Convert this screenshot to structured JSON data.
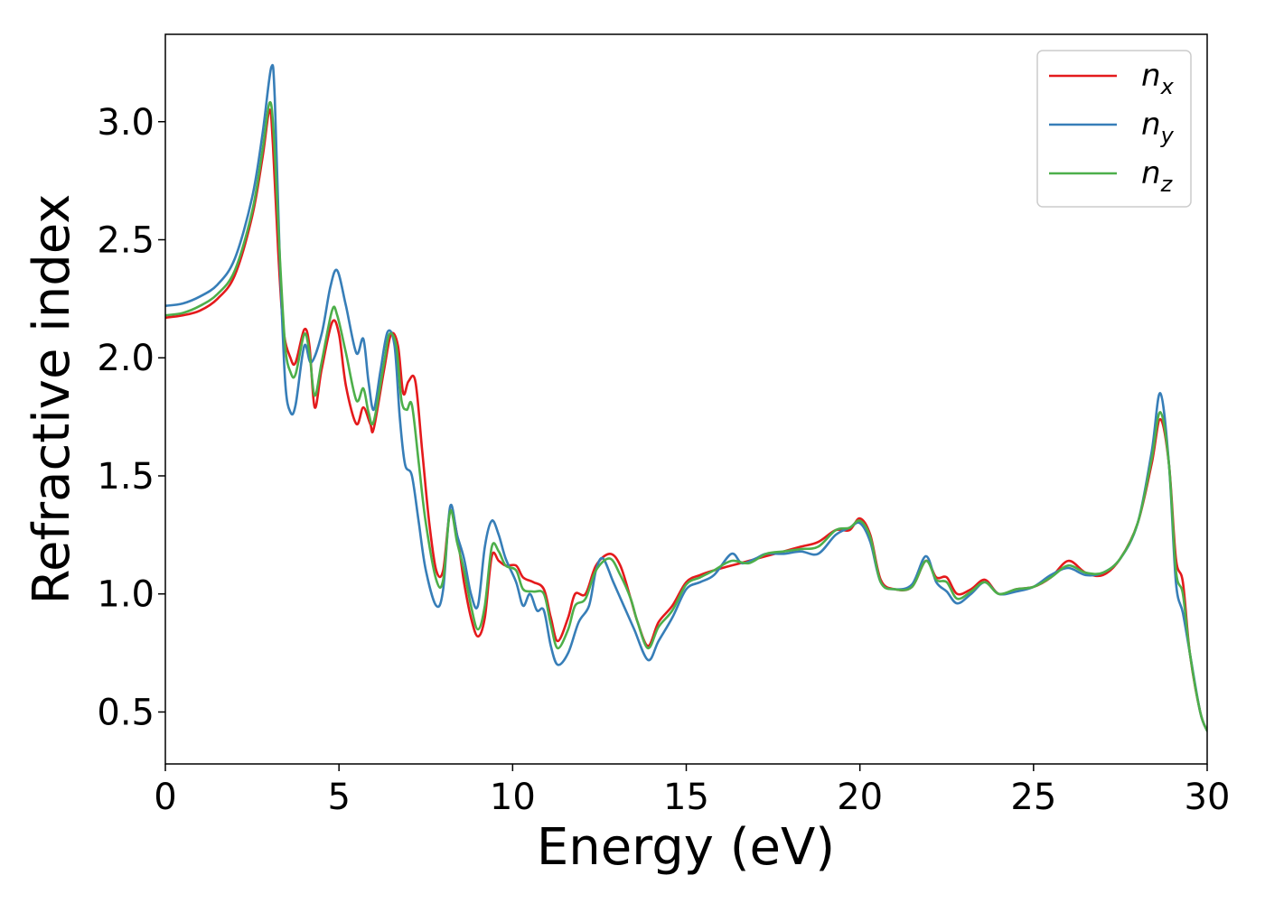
{
  "chart_data": {
    "type": "line",
    "xlabel": "Energy (eV)",
    "ylabel": "Refractive index",
    "xlim": [
      0,
      30
    ],
    "ylim": [
      0.28,
      3.37
    ],
    "xticks": [
      "0",
      "5",
      "10",
      "15",
      "20",
      "25",
      "30"
    ],
    "xtick_values": [
      0,
      5,
      10,
      15,
      20,
      25,
      30
    ],
    "yticks": [
      "0.5",
      "1.0",
      "1.5",
      "2.0",
      "2.5",
      "3.0"
    ],
    "ytick_values": [
      0.5,
      1.0,
      1.5,
      2.0,
      2.5,
      3.0
    ],
    "grid": false,
    "legend_position": "upper-right",
    "series": [
      {
        "name": "n_x",
        "label_main": "n",
        "label_sub": "x",
        "color": "#e41a1c",
        "points": [
          [
            0,
            2.17
          ],
          [
            0.5,
            2.18
          ],
          [
            1.0,
            2.2
          ],
          [
            1.5,
            2.25
          ],
          [
            2.0,
            2.35
          ],
          [
            2.5,
            2.6
          ],
          [
            2.8,
            2.85
          ],
          [
            3.0,
            3.05
          ],
          [
            3.1,
            2.9
          ],
          [
            3.25,
            2.45
          ],
          [
            3.4,
            2.12
          ],
          [
            3.6,
            2.0
          ],
          [
            3.75,
            1.98
          ],
          [
            4.0,
            2.12
          ],
          [
            4.15,
            2.05
          ],
          [
            4.3,
            1.79
          ],
          [
            4.5,
            1.95
          ],
          [
            4.8,
            2.15
          ],
          [
            5.0,
            2.1
          ],
          [
            5.2,
            1.88
          ],
          [
            5.5,
            1.72
          ],
          [
            5.7,
            1.79
          ],
          [
            5.9,
            1.72
          ],
          [
            6.0,
            1.7
          ],
          [
            6.3,
            1.95
          ],
          [
            6.5,
            2.1
          ],
          [
            6.7,
            2.05
          ],
          [
            6.85,
            1.85
          ],
          [
            7.0,
            1.9
          ],
          [
            7.2,
            1.9
          ],
          [
            7.4,
            1.6
          ],
          [
            7.6,
            1.3
          ],
          [
            7.8,
            1.1
          ],
          [
            8.0,
            1.1
          ],
          [
            8.2,
            1.35
          ],
          [
            8.4,
            1.25
          ],
          [
            8.6,
            1.05
          ],
          [
            8.8,
            0.9
          ],
          [
            9.0,
            0.82
          ],
          [
            9.2,
            0.9
          ],
          [
            9.4,
            1.16
          ],
          [
            9.6,
            1.14
          ],
          [
            9.8,
            1.12
          ],
          [
            10.1,
            1.12
          ],
          [
            10.3,
            1.07
          ],
          [
            10.6,
            1.05
          ],
          [
            10.9,
            1.02
          ],
          [
            11.1,
            0.9
          ],
          [
            11.3,
            0.8
          ],
          [
            11.6,
            0.9
          ],
          [
            11.8,
            1.0
          ],
          [
            12.1,
            1.0
          ],
          [
            12.4,
            1.12
          ],
          [
            12.8,
            1.17
          ],
          [
            13.1,
            1.12
          ],
          [
            13.4,
            0.98
          ],
          [
            13.6,
            0.88
          ],
          [
            13.9,
            0.78
          ],
          [
            14.2,
            0.88
          ],
          [
            14.6,
            0.95
          ],
          [
            15.0,
            1.05
          ],
          [
            15.4,
            1.08
          ],
          [
            15.8,
            1.1
          ],
          [
            16.3,
            1.12
          ],
          [
            16.8,
            1.14
          ],
          [
            17.3,
            1.16
          ],
          [
            17.8,
            1.18
          ],
          [
            18.3,
            1.2
          ],
          [
            18.8,
            1.22
          ],
          [
            19.3,
            1.27
          ],
          [
            19.7,
            1.27
          ],
          [
            20.0,
            1.32
          ],
          [
            20.3,
            1.25
          ],
          [
            20.6,
            1.06
          ],
          [
            21.0,
            1.02
          ],
          [
            21.5,
            1.03
          ],
          [
            21.9,
            1.14
          ],
          [
            22.2,
            1.07
          ],
          [
            22.5,
            1.07
          ],
          [
            22.8,
            1.0
          ],
          [
            23.2,
            1.02
          ],
          [
            23.6,
            1.06
          ],
          [
            24.0,
            1.0
          ],
          [
            24.5,
            1.02
          ],
          [
            25.0,
            1.03
          ],
          [
            25.5,
            1.07
          ],
          [
            26.0,
            1.14
          ],
          [
            26.5,
            1.09
          ],
          [
            27.0,
            1.08
          ],
          [
            27.5,
            1.15
          ],
          [
            28.0,
            1.3
          ],
          [
            28.4,
            1.55
          ],
          [
            28.65,
            1.74
          ],
          [
            28.9,
            1.55
          ],
          [
            29.1,
            1.15
          ],
          [
            29.3,
            1.05
          ],
          [
            29.5,
            0.75
          ],
          [
            29.8,
            0.5
          ],
          [
            30.0,
            0.42
          ]
        ]
      },
      {
        "name": "n_y",
        "label_main": "n",
        "label_sub": "y",
        "color": "#377eb8",
        "points": [
          [
            0,
            2.22
          ],
          [
            0.5,
            2.23
          ],
          [
            1.0,
            2.26
          ],
          [
            1.5,
            2.31
          ],
          [
            2.0,
            2.42
          ],
          [
            2.5,
            2.68
          ],
          [
            2.8,
            2.95
          ],
          [
            3.05,
            3.23
          ],
          [
            3.15,
            3.1
          ],
          [
            3.3,
            2.4
          ],
          [
            3.45,
            1.9
          ],
          [
            3.6,
            1.77
          ],
          [
            3.75,
            1.8
          ],
          [
            4.0,
            2.05
          ],
          [
            4.2,
            1.98
          ],
          [
            4.5,
            2.1
          ],
          [
            4.75,
            2.3
          ],
          [
            4.95,
            2.37
          ],
          [
            5.2,
            2.22
          ],
          [
            5.5,
            2.02
          ],
          [
            5.7,
            2.08
          ],
          [
            5.85,
            1.9
          ],
          [
            6.0,
            1.78
          ],
          [
            6.2,
            1.95
          ],
          [
            6.4,
            2.11
          ],
          [
            6.6,
            2.05
          ],
          [
            6.75,
            1.75
          ],
          [
            6.9,
            1.55
          ],
          [
            7.1,
            1.5
          ],
          [
            7.3,
            1.3
          ],
          [
            7.5,
            1.1
          ],
          [
            7.8,
            0.95
          ],
          [
            8.0,
            1.02
          ],
          [
            8.2,
            1.37
          ],
          [
            8.4,
            1.25
          ],
          [
            8.6,
            1.15
          ],
          [
            8.8,
            1.0
          ],
          [
            9.0,
            0.95
          ],
          [
            9.2,
            1.2
          ],
          [
            9.4,
            1.31
          ],
          [
            9.6,
            1.25
          ],
          [
            9.8,
            1.15
          ],
          [
            10.1,
            1.05
          ],
          [
            10.3,
            0.95
          ],
          [
            10.5,
            1.0
          ],
          [
            10.7,
            0.93
          ],
          [
            10.9,
            0.93
          ],
          [
            11.1,
            0.78
          ],
          [
            11.3,
            0.7
          ],
          [
            11.6,
            0.75
          ],
          [
            11.9,
            0.88
          ],
          [
            12.2,
            0.95
          ],
          [
            12.4,
            1.1
          ],
          [
            12.6,
            1.15
          ],
          [
            12.9,
            1.05
          ],
          [
            13.2,
            0.95
          ],
          [
            13.5,
            0.85
          ],
          [
            13.9,
            0.72
          ],
          [
            14.2,
            0.8
          ],
          [
            14.6,
            0.9
          ],
          [
            15.0,
            1.02
          ],
          [
            15.4,
            1.05
          ],
          [
            15.8,
            1.08
          ],
          [
            16.3,
            1.17
          ],
          [
            16.6,
            1.13
          ],
          [
            17.0,
            1.15
          ],
          [
            17.3,
            1.17
          ],
          [
            17.8,
            1.17
          ],
          [
            18.3,
            1.18
          ],
          [
            18.8,
            1.17
          ],
          [
            19.3,
            1.25
          ],
          [
            19.7,
            1.28
          ],
          [
            20.0,
            1.3
          ],
          [
            20.3,
            1.22
          ],
          [
            20.6,
            1.05
          ],
          [
            21.0,
            1.02
          ],
          [
            21.5,
            1.04
          ],
          [
            21.9,
            1.16
          ],
          [
            22.2,
            1.05
          ],
          [
            22.5,
            1.01
          ],
          [
            22.8,
            0.96
          ],
          [
            23.2,
            1.0
          ],
          [
            23.6,
            1.05
          ],
          [
            24.0,
            1.0
          ],
          [
            24.5,
            1.01
          ],
          [
            25.0,
            1.03
          ],
          [
            25.5,
            1.08
          ],
          [
            26.0,
            1.11
          ],
          [
            26.5,
            1.08
          ],
          [
            27.0,
            1.09
          ],
          [
            27.5,
            1.15
          ],
          [
            28.0,
            1.3
          ],
          [
            28.4,
            1.6
          ],
          [
            28.65,
            1.85
          ],
          [
            28.9,
            1.55
          ],
          [
            29.1,
            1.05
          ],
          [
            29.3,
            0.92
          ],
          [
            29.5,
            0.75
          ],
          [
            29.8,
            0.5
          ],
          [
            30.0,
            0.42
          ]
        ]
      },
      {
        "name": "n_z",
        "label_main": "n",
        "label_sub": "z",
        "color": "#4daf4a",
        "points": [
          [
            0,
            2.18
          ],
          [
            0.5,
            2.19
          ],
          [
            1.0,
            2.22
          ],
          [
            1.5,
            2.27
          ],
          [
            2.0,
            2.37
          ],
          [
            2.5,
            2.62
          ],
          [
            2.8,
            2.88
          ],
          [
            3.0,
            3.08
          ],
          [
            3.12,
            2.95
          ],
          [
            3.3,
            2.42
          ],
          [
            3.45,
            2.05
          ],
          [
            3.6,
            1.94
          ],
          [
            3.75,
            1.93
          ],
          [
            4.0,
            2.1
          ],
          [
            4.15,
            2.02
          ],
          [
            4.3,
            1.84
          ],
          [
            4.5,
            1.98
          ],
          [
            4.8,
            2.2
          ],
          [
            4.95,
            2.18
          ],
          [
            5.2,
            2.02
          ],
          [
            5.5,
            1.82
          ],
          [
            5.7,
            1.87
          ],
          [
            5.85,
            1.77
          ],
          [
            6.0,
            1.73
          ],
          [
            6.3,
            1.98
          ],
          [
            6.45,
            2.1
          ],
          [
            6.65,
            2.05
          ],
          [
            6.8,
            1.82
          ],
          [
            6.95,
            1.78
          ],
          [
            7.1,
            1.8
          ],
          [
            7.3,
            1.55
          ],
          [
            7.5,
            1.3
          ],
          [
            7.8,
            1.06
          ],
          [
            8.0,
            1.06
          ],
          [
            8.2,
            1.35
          ],
          [
            8.4,
            1.22
          ],
          [
            8.6,
            1.1
          ],
          [
            8.8,
            0.95
          ],
          [
            9.0,
            0.85
          ],
          [
            9.2,
            0.95
          ],
          [
            9.4,
            1.2
          ],
          [
            9.6,
            1.18
          ],
          [
            9.8,
            1.12
          ],
          [
            10.1,
            1.1
          ],
          [
            10.3,
            1.02
          ],
          [
            10.6,
            1.01
          ],
          [
            10.9,
            1.0
          ],
          [
            11.1,
            0.87
          ],
          [
            11.3,
            0.77
          ],
          [
            11.6,
            0.85
          ],
          [
            11.8,
            0.95
          ],
          [
            12.1,
            0.98
          ],
          [
            12.4,
            1.1
          ],
          [
            12.8,
            1.15
          ],
          [
            13.1,
            1.08
          ],
          [
            13.4,
            0.98
          ],
          [
            13.6,
            0.88
          ],
          [
            13.9,
            0.77
          ],
          [
            14.2,
            0.86
          ],
          [
            14.6,
            0.93
          ],
          [
            15.0,
            1.04
          ],
          [
            15.4,
            1.07
          ],
          [
            15.8,
            1.1
          ],
          [
            16.3,
            1.14
          ],
          [
            16.8,
            1.13
          ],
          [
            17.3,
            1.17
          ],
          [
            17.8,
            1.18
          ],
          [
            18.3,
            1.19
          ],
          [
            18.8,
            1.2
          ],
          [
            19.3,
            1.27
          ],
          [
            19.7,
            1.28
          ],
          [
            20.0,
            1.31
          ],
          [
            20.3,
            1.24
          ],
          [
            20.6,
            1.05
          ],
          [
            21.0,
            1.02
          ],
          [
            21.5,
            1.03
          ],
          [
            21.9,
            1.14
          ],
          [
            22.2,
            1.06
          ],
          [
            22.5,
            1.05
          ],
          [
            22.8,
            0.98
          ],
          [
            23.2,
            1.01
          ],
          [
            23.6,
            1.05
          ],
          [
            24.0,
            1.0
          ],
          [
            24.5,
            1.02
          ],
          [
            25.0,
            1.03
          ],
          [
            25.5,
            1.07
          ],
          [
            26.0,
            1.12
          ],
          [
            26.5,
            1.09
          ],
          [
            27.0,
            1.09
          ],
          [
            27.5,
            1.15
          ],
          [
            28.0,
            1.3
          ],
          [
            28.4,
            1.57
          ],
          [
            28.65,
            1.77
          ],
          [
            28.9,
            1.55
          ],
          [
            29.1,
            1.1
          ],
          [
            29.3,
            1.0
          ],
          [
            29.5,
            0.75
          ],
          [
            29.8,
            0.5
          ],
          [
            30.0,
            0.42
          ]
        ]
      }
    ]
  }
}
